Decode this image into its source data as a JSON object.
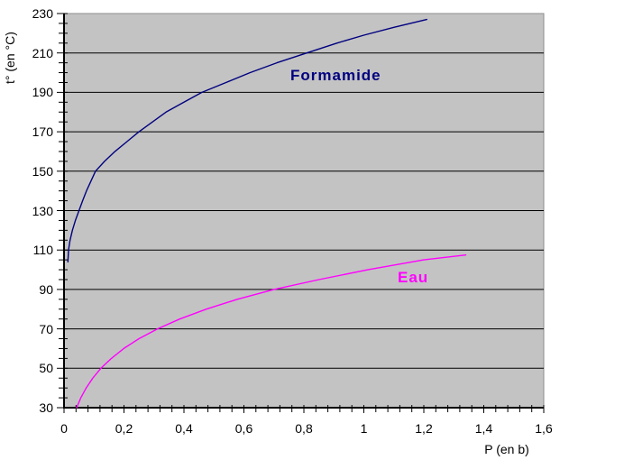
{
  "colors": {
    "plot_bg": "#c3c3c3",
    "plot_border": "#8c8c8c",
    "gridline": "#000000",
    "axis": "#000000",
    "formamide": "#000080",
    "eau": "#ff00ff"
  },
  "axes": {
    "y_title": "t° (en °C)",
    "x_title": "P (en b)",
    "y_tick_labels": [
      "230",
      "210",
      "190",
      "170",
      "150",
      "130",
      "110",
      "90",
      "70",
      "50",
      "30"
    ],
    "x_tick_labels": [
      "0",
      "0,2",
      "0,4",
      "0,6",
      "0,8",
      "1",
      "1,2",
      "1,4",
      "1,6"
    ]
  },
  "chart_data": {
    "type": "line",
    "title": "",
    "xlabel": "P (en b)",
    "ylabel": "t° (en °C)",
    "xlim": [
      0,
      1.6
    ],
    "ylim": [
      30,
      230
    ],
    "x_major_ticks": [
      0,
      0.2,
      0.4,
      0.6,
      0.8,
      1,
      1.2,
      1.4,
      1.6
    ],
    "x_minor_unit": 0.04,
    "y_major_ticks": [
      30,
      50,
      70,
      90,
      110,
      130,
      150,
      170,
      190,
      210,
      230
    ],
    "y_minor_unit": 5,
    "grid": "horizontal-major-only",
    "legend": "inline-data-labels",
    "series": [
      {
        "name": "Formamide",
        "color": "#000080",
        "points": [
          [
            0.013,
            104
          ],
          [
            0.015,
            110
          ],
          [
            0.02,
            115
          ],
          [
            0.028,
            120
          ],
          [
            0.038,
            125
          ],
          [
            0.05,
            130
          ],
          [
            0.062,
            135
          ],
          [
            0.075,
            140
          ],
          [
            0.09,
            145
          ],
          [
            0.105,
            150
          ],
          [
            0.135,
            155
          ],
          [
            0.17,
            160
          ],
          [
            0.21,
            165
          ],
          [
            0.25,
            170
          ],
          [
            0.295,
            175
          ],
          [
            0.34,
            180
          ],
          [
            0.4,
            185
          ],
          [
            0.46,
            190
          ],
          [
            0.54,
            195
          ],
          [
            0.62,
            200
          ],
          [
            0.71,
            205
          ],
          [
            0.81,
            210
          ],
          [
            0.91,
            215
          ],
          [
            1.0,
            219
          ],
          [
            1.1,
            223
          ],
          [
            1.21,
            227
          ]
        ]
      },
      {
        "name": "Eau",
        "color": "#ff00ff",
        "points": [
          [
            0.042,
            30
          ],
          [
            0.056,
            35
          ],
          [
            0.074,
            40
          ],
          [
            0.096,
            45
          ],
          [
            0.123,
            50
          ],
          [
            0.158,
            55
          ],
          [
            0.199,
            60
          ],
          [
            0.25,
            65
          ],
          [
            0.312,
            70
          ],
          [
            0.386,
            75
          ],
          [
            0.474,
            80
          ],
          [
            0.578,
            85
          ],
          [
            0.7,
            90
          ],
          [
            0.85,
            95
          ],
          [
            1.013,
            100
          ],
          [
            1.2,
            105
          ],
          [
            1.34,
            107.5
          ]
        ]
      }
    ]
  }
}
